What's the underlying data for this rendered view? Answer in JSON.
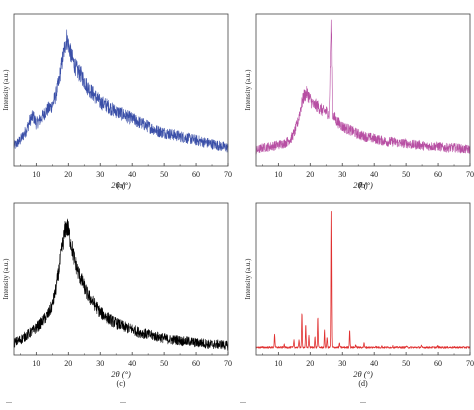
{
  "figure": {
    "panel_labels": [
      "(a)",
      "(b)",
      "(c)",
      "(d)"
    ],
    "caption_fragments": [
      "...",
      "...",
      "...",
      "..."
    ]
  },
  "chart_data": [
    {
      "id": "a",
      "type": "line",
      "color": "#3a4fa8",
      "xlabel": "2θ (°)",
      "ylabel": "Intensity (a.u.)",
      "xlim": [
        3,
        70
      ],
      "xticks": [
        10,
        20,
        30,
        40,
        50,
        60,
        70
      ],
      "ylim": [
        0,
        1
      ],
      "grid": false,
      "series": [
        {
          "x": [
            3,
            5,
            7,
            8,
            9,
            10,
            11,
            12,
            13,
            14,
            15,
            16,
            17,
            18,
            19,
            19.5,
            20,
            21,
            22,
            23,
            24,
            25,
            26,
            28,
            30,
            32,
            34,
            36,
            38,
            40,
            42,
            44,
            46,
            48,
            50,
            52,
            54,
            56,
            58,
            60,
            62,
            64,
            66,
            68,
            70
          ],
          "y": [
            0.13,
            0.17,
            0.24,
            0.3,
            0.33,
            0.28,
            0.3,
            0.33,
            0.36,
            0.38,
            0.4,
            0.46,
            0.55,
            0.68,
            0.8,
            0.84,
            0.8,
            0.72,
            0.66,
            0.62,
            0.6,
            0.56,
            0.52,
            0.47,
            0.42,
            0.4,
            0.37,
            0.35,
            0.33,
            0.31,
            0.29,
            0.27,
            0.25,
            0.23,
            0.22,
            0.21,
            0.2,
            0.19,
            0.18,
            0.17,
            0.16,
            0.15,
            0.14,
            0.13,
            0.12
          ]
        }
      ]
    },
    {
      "id": "b",
      "type": "line",
      "color": "#b74fa3",
      "xlabel": "2θ (°)",
      "ylabel": "Intensity (a.u.)",
      "xlim": [
        3,
        70
      ],
      "xticks": [
        10,
        20,
        30,
        40,
        50,
        60,
        70
      ],
      "ylim": [
        0,
        1
      ],
      "grid": false,
      "series": [
        {
          "x": [
            3,
            5,
            8,
            10,
            12,
            14,
            15,
            16,
            17,
            18,
            19,
            20,
            21,
            22,
            23,
            24,
            25,
            26,
            26.6,
            27,
            28,
            30,
            32,
            34,
            36,
            38,
            40,
            42,
            44,
            46,
            48,
            50,
            52,
            54,
            56,
            58,
            60,
            62,
            64,
            66,
            68,
            70
          ],
          "y": [
            0.1,
            0.12,
            0.13,
            0.14,
            0.15,
            0.18,
            0.22,
            0.28,
            0.38,
            0.46,
            0.48,
            0.44,
            0.4,
            0.4,
            0.38,
            0.36,
            0.36,
            0.34,
            0.95,
            0.34,
            0.3,
            0.26,
            0.24,
            0.22,
            0.2,
            0.19,
            0.18,
            0.17,
            0.16,
            0.16,
            0.15,
            0.15,
            0.14,
            0.14,
            0.13,
            0.13,
            0.13,
            0.12,
            0.12,
            0.12,
            0.11,
            0.11
          ]
        }
      ]
    },
    {
      "id": "c",
      "type": "line",
      "color": "#000000",
      "xlabel": "2θ (°)",
      "ylabel": "Intensity (a.u.)",
      "xlim": [
        3,
        70
      ],
      "xticks": [
        10,
        20,
        30,
        40,
        50,
        60,
        70
      ],
      "ylim": [
        0,
        1
      ],
      "grid": false,
      "series": [
        {
          "x": [
            3,
            5,
            7,
            9,
            11,
            13,
            14,
            15,
            16,
            17,
            18,
            19,
            19.5,
            20,
            21,
            22,
            23,
            24,
            25,
            26,
            28,
            30,
            32,
            34,
            36,
            38,
            40,
            42,
            44,
            46,
            48,
            50,
            52,
            54,
            56,
            58,
            60,
            62,
            64,
            66,
            68,
            70
          ],
          "y": [
            0.08,
            0.1,
            0.13,
            0.16,
            0.2,
            0.25,
            0.28,
            0.33,
            0.42,
            0.55,
            0.7,
            0.82,
            0.85,
            0.82,
            0.72,
            0.62,
            0.55,
            0.5,
            0.45,
            0.4,
            0.34,
            0.28,
            0.25,
            0.22,
            0.2,
            0.18,
            0.17,
            0.15,
            0.14,
            0.13,
            0.12,
            0.11,
            0.1,
            0.1,
            0.09,
            0.09,
            0.08,
            0.08,
            0.07,
            0.07,
            0.07,
            0.06
          ]
        }
      ]
    },
    {
      "id": "d",
      "type": "line",
      "color": "#e03030",
      "xlabel": "2θ (°)",
      "ylabel": "Intensity (a.u.)",
      "xlim": [
        3,
        70
      ],
      "xticks": [
        10,
        20,
        30,
        40,
        50,
        60,
        70
      ],
      "ylim": [
        0,
        1
      ],
      "grid": false,
      "baseline": 0.05,
      "peaks": [
        {
          "x": 8.8,
          "y": 0.14
        },
        {
          "x": 11.8,
          "y": 0.07
        },
        {
          "x": 14.9,
          "y": 0.1
        },
        {
          "x": 16.5,
          "y": 0.1
        },
        {
          "x": 17.4,
          "y": 0.28
        },
        {
          "x": 18.6,
          "y": 0.2
        },
        {
          "x": 19.6,
          "y": 0.13
        },
        {
          "x": 21.5,
          "y": 0.12
        },
        {
          "x": 22.4,
          "y": 0.25
        },
        {
          "x": 24.5,
          "y": 0.16
        },
        {
          "x": 25.3,
          "y": 0.12
        },
        {
          "x": 26.6,
          "y": 0.94
        },
        {
          "x": 29.1,
          "y": 0.08
        },
        {
          "x": 32.3,
          "y": 0.17
        },
        {
          "x": 34.2,
          "y": 0.07
        },
        {
          "x": 36.8,
          "y": 0.08
        },
        {
          "x": 40.5,
          "y": 0.06
        },
        {
          "x": 42.4,
          "y": 0.06
        },
        {
          "x": 45.8,
          "y": 0.06
        },
        {
          "x": 50.1,
          "y": 0.06
        },
        {
          "x": 54.8,
          "y": 0.06
        },
        {
          "x": 59.9,
          "y": 0.06
        }
      ]
    }
  ]
}
